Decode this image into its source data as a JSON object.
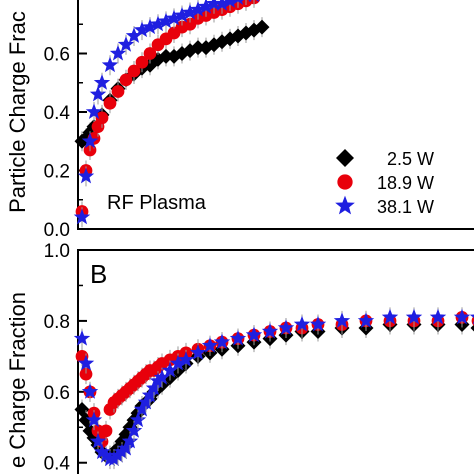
{
  "chart_data": [
    {
      "type": "scatter",
      "title": "",
      "panel_label": "",
      "ylabel": "Particle Charge Frac",
      "xlabel": "",
      "ylim": [
        0.0,
        0.8
      ],
      "yticks": [
        "0.0",
        "0.2",
        "0.4",
        "0.6"
      ],
      "yticks_values": [
        0.0,
        0.2,
        0.4,
        0.6
      ],
      "xlim": [
        0,
        100
      ],
      "grid": false,
      "annotation": "RF Plasma",
      "legend": {
        "placement": "bottom-right",
        "entries": [
          {
            "label": "2.5 W",
            "marker": "diamond",
            "color": "#000000"
          },
          {
            "label": "18.9 W",
            "marker": "circle",
            "color": "#e8000b"
          },
          {
            "label": "38.1 W",
            "marker": "star",
            "color": "#1f1fe0"
          }
        ]
      },
      "series": [
        {
          "name": "2.5 W",
          "color": "#000000",
          "marker": "diamond",
          "x": [
            1,
            2,
            3,
            4,
            6,
            8,
            10,
            12,
            14,
            16,
            18,
            20,
            22,
            24,
            26,
            28,
            30,
            32,
            34,
            36,
            38,
            40,
            42,
            44,
            46
          ],
          "y": [
            0.3,
            0.31,
            0.33,
            0.35,
            0.39,
            0.44,
            0.48,
            0.51,
            0.53,
            0.55,
            0.56,
            0.58,
            0.59,
            0.59,
            0.6,
            0.61,
            0.62,
            0.62,
            0.63,
            0.64,
            0.65,
            0.66,
            0.67,
            0.68,
            0.69
          ]
        },
        {
          "name": "18.9 W",
          "color": "#e8000b",
          "marker": "circle",
          "x": [
            1,
            2,
            3,
            4,
            5,
            6,
            8,
            10,
            12,
            14,
            16,
            18,
            20,
            22,
            24,
            26,
            28,
            30,
            32,
            34,
            36,
            38,
            40,
            42,
            44
          ],
          "y": [
            0.06,
            0.2,
            0.27,
            0.31,
            0.35,
            0.38,
            0.43,
            0.47,
            0.51,
            0.54,
            0.57,
            0.6,
            0.63,
            0.65,
            0.67,
            0.69,
            0.7,
            0.72,
            0.73,
            0.74,
            0.75,
            0.76,
            0.77,
            0.78,
            0.79
          ]
        },
        {
          "name": "38.1 W",
          "color": "#1f1fe0",
          "marker": "star",
          "x": [
            1,
            2,
            3,
            4,
            5,
            6,
            8,
            10,
            12,
            14,
            16,
            18,
            20,
            22,
            24,
            26,
            28,
            30,
            32,
            34,
            36,
            38,
            40,
            42,
            44
          ],
          "y": [
            0.04,
            0.18,
            0.3,
            0.4,
            0.46,
            0.5,
            0.56,
            0.6,
            0.63,
            0.66,
            0.68,
            0.69,
            0.7,
            0.71,
            0.72,
            0.73,
            0.74,
            0.75,
            0.76,
            0.77,
            0.77,
            0.78,
            0.79,
            0.8,
            0.8
          ]
        }
      ]
    },
    {
      "type": "scatter",
      "title": "",
      "panel_label": "B",
      "ylabel": "e Charge Fraction",
      "xlabel": "",
      "ylim": [
        0.34,
        1.0
      ],
      "yticks": [
        "0.4",
        "0.6",
        "0.8",
        "1.0"
      ],
      "yticks_values": [
        0.4,
        0.6,
        0.8,
        1.0
      ],
      "xlim": [
        0,
        100
      ],
      "grid": false,
      "series": [
        {
          "name": "2.5 W",
          "color": "#000000",
          "marker": "diamond",
          "x": [
            1,
            2,
            3,
            4,
            5,
            6,
            7,
            8,
            9,
            10,
            11,
            12,
            13,
            14,
            15,
            16,
            17,
            18,
            19,
            20,
            21,
            23,
            25,
            27,
            30,
            33,
            36,
            40,
            44,
            48,
            52,
            56,
            60,
            66,
            72,
            78,
            84,
            90,
            96,
            100
          ],
          "y": [
            0.55,
            0.52,
            0.49,
            0.47,
            0.45,
            0.43,
            0.42,
            0.42,
            0.43,
            0.44,
            0.46,
            0.48,
            0.5,
            0.52,
            0.54,
            0.56,
            0.57,
            0.58,
            0.6,
            0.61,
            0.62,
            0.64,
            0.66,
            0.68,
            0.7,
            0.71,
            0.72,
            0.73,
            0.74,
            0.75,
            0.76,
            0.77,
            0.77,
            0.78,
            0.78,
            0.79,
            0.79,
            0.79,
            0.79,
            0.78
          ]
        },
        {
          "name": "18.9 W",
          "color": "#e8000b",
          "marker": "circle",
          "x": [
            1,
            2,
            3,
            4,
            5,
            6,
            7,
            8,
            9,
            10,
            11,
            12,
            13,
            14,
            15,
            16,
            17,
            18,
            19,
            20,
            21,
            23,
            25,
            27,
            30,
            33,
            36,
            40,
            44,
            48,
            52,
            56,
            60,
            66,
            72,
            78,
            84,
            90,
            96,
            100
          ],
          "y": [
            0.7,
            0.65,
            0.6,
            0.54,
            0.49,
            0.46,
            0.49,
            0.55,
            0.57,
            0.58,
            0.59,
            0.6,
            0.61,
            0.62,
            0.63,
            0.64,
            0.65,
            0.66,
            0.66,
            0.67,
            0.68,
            0.69,
            0.7,
            0.71,
            0.72,
            0.73,
            0.74,
            0.75,
            0.76,
            0.77,
            0.78,
            0.78,
            0.79,
            0.79,
            0.8,
            0.8,
            0.8,
            0.8,
            0.81,
            0.8
          ]
        },
        {
          "name": "38.1 W",
          "color": "#1f1fe0",
          "marker": "star",
          "x": [
            1,
            2,
            3,
            4,
            5,
            6,
            7,
            8,
            9,
            10,
            11,
            12,
            13,
            14,
            15,
            16,
            17,
            18,
            19,
            20,
            21,
            23,
            25,
            27,
            30,
            33,
            36,
            40,
            44,
            48,
            52,
            56,
            60,
            66,
            72,
            78,
            84,
            90,
            96,
            100
          ],
          "y": [
            0.75,
            0.68,
            0.6,
            0.52,
            0.46,
            0.43,
            0.42,
            0.41,
            0.41,
            0.42,
            0.43,
            0.44,
            0.46,
            0.49,
            0.52,
            0.55,
            0.57,
            0.59,
            0.61,
            0.63,
            0.64,
            0.66,
            0.68,
            0.69,
            0.71,
            0.73,
            0.74,
            0.75,
            0.76,
            0.77,
            0.78,
            0.79,
            0.79,
            0.8,
            0.8,
            0.81,
            0.81,
            0.81,
            0.81,
            0.81
          ]
        }
      ]
    }
  ]
}
